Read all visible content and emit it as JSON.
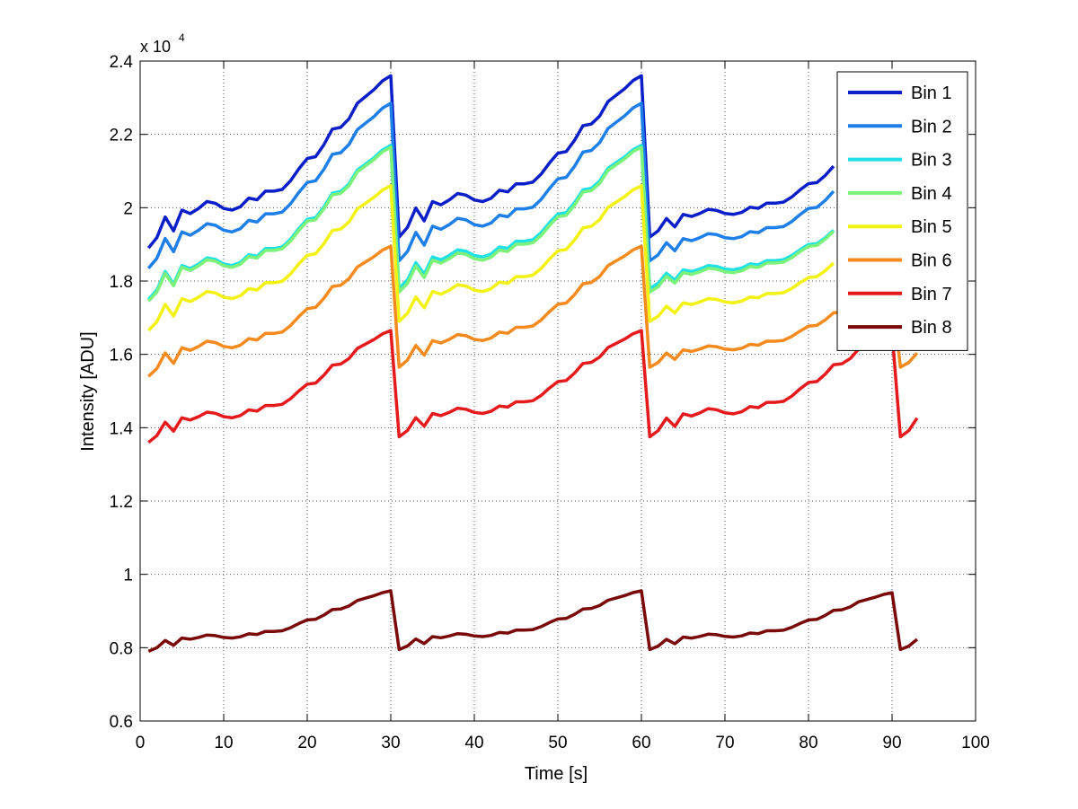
{
  "chart_data": {
    "type": "line",
    "title": "",
    "xlabel": "Time [s]",
    "ylabel": "Intensity [ADU]",
    "exponent_label": {
      "base": "x 10",
      "power": "4"
    },
    "xlim": [
      0,
      100
    ],
    "ylim": [
      0.6,
      2.4
    ],
    "xticks": [
      0,
      10,
      20,
      30,
      40,
      50,
      60,
      70,
      80,
      90,
      100
    ],
    "xtick_labels": [
      "0",
      "10",
      "20",
      "30",
      "40",
      "50",
      "60",
      "70",
      "80",
      "90",
      "100"
    ],
    "yticks": [
      0.6,
      0.8,
      1.0,
      1.2,
      1.4,
      1.6,
      1.8,
      2.0,
      2.2,
      2.4
    ],
    "ytick_labels": [
      "0.6",
      "0.8",
      "1",
      "1.2",
      "1.4",
      "1.6",
      "1.8",
      "2",
      "2.2",
      "2.4"
    ],
    "grid": true,
    "legend_position": "top-right",
    "x": [
      1,
      2,
      3,
      4,
      5,
      6,
      7,
      8,
      9,
      10,
      11,
      12,
      13,
      14,
      15,
      16,
      17,
      18,
      19,
      20,
      21,
      22,
      23,
      24,
      25,
      26,
      27,
      28,
      29,
      30,
      31,
      32,
      33,
      34,
      35,
      36,
      37,
      38,
      39,
      40,
      41,
      42,
      43,
      44,
      45,
      46,
      47,
      48,
      49,
      50,
      51,
      52,
      53,
      54,
      55,
      56,
      57,
      58,
      59,
      60,
      61,
      62,
      63,
      64,
      65,
      66,
      67,
      68,
      69,
      70,
      71,
      72,
      73,
      74,
      75,
      76,
      77,
      78,
      79,
      80,
      81,
      82,
      83,
      84,
      85,
      86,
      87,
      88,
      89,
      90,
      91,
      92,
      93
    ],
    "series": [
      {
        "name": "Bin 1",
        "color": "#0A1FC8",
        "base": 1.89,
        "drop": 1.92,
        "peak": 2.36,
        "end_peak": 2.2,
        "truncate_at": 83
      },
      {
        "name": "Bin 2",
        "color": "#1E7FE8",
        "base": 1.835,
        "drop": 1.855,
        "peak": 2.285,
        "end_peak": 2.13,
        "truncate_at": 83
      },
      {
        "name": "Bin 3",
        "color": "#1FE0E6",
        "base": 1.75,
        "drop": 1.78,
        "peak": 2.17,
        "end_peak": 2.01,
        "truncate_at": 83
      },
      {
        "name": "Bin 4",
        "color": "#7CF27A",
        "base": 1.745,
        "drop": 1.77,
        "peak": 2.165,
        "end_peak": 2.01,
        "truncate_at": 83
      },
      {
        "name": "Bin 5",
        "color": "#F2F214",
        "base": 1.665,
        "drop": 1.69,
        "peak": 2.06,
        "end_peak": 1.92,
        "truncate_at": 83
      },
      {
        "name": "Bin 6",
        "color": "#F58A1F",
        "base": 1.54,
        "drop": 1.565,
        "peak": 1.895,
        "end_peak": 1.78,
        "truncate_at": 93
      },
      {
        "name": "Bin 7",
        "color": "#E41A1C",
        "base": 1.36,
        "drop": 1.375,
        "peak": 1.665,
        "end_peak": 1.66,
        "truncate_at": 93
      },
      {
        "name": "Bin 8",
        "color": "#7A0A0A",
        "base": 0.79,
        "drop": 0.795,
        "peak": 0.955,
        "end_peak": 0.95,
        "truncate_at": 93
      }
    ]
  }
}
